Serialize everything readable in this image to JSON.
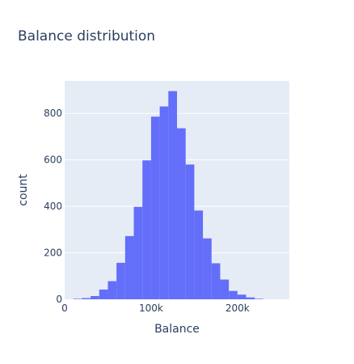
{
  "chart_data": {
    "type": "bar",
    "title": "Balance distribution",
    "xlabel": "Balance",
    "ylabel": "count",
    "xlim": [
      0,
      260000
    ],
    "ylim": [
      0,
      940
    ],
    "bin_width": 10000,
    "bins": [
      {
        "start": 10000,
        "count": 2
      },
      {
        "start": 20000,
        "count": 5
      },
      {
        "start": 30000,
        "count": 14
      },
      {
        "start": 40000,
        "count": 42
      },
      {
        "start": 50000,
        "count": 78
      },
      {
        "start": 60000,
        "count": 157
      },
      {
        "start": 70000,
        "count": 272
      },
      {
        "start": 80000,
        "count": 398
      },
      {
        "start": 90000,
        "count": 598
      },
      {
        "start": 100000,
        "count": 786
      },
      {
        "start": 110000,
        "count": 830
      },
      {
        "start": 120000,
        "count": 896
      },
      {
        "start": 130000,
        "count": 736
      },
      {
        "start": 140000,
        "count": 580
      },
      {
        "start": 150000,
        "count": 382
      },
      {
        "start": 160000,
        "count": 262
      },
      {
        "start": 170000,
        "count": 155
      },
      {
        "start": 180000,
        "count": 85
      },
      {
        "start": 190000,
        "count": 36
      },
      {
        "start": 200000,
        "count": 20
      },
      {
        "start": 210000,
        "count": 8
      },
      {
        "start": 220000,
        "count": 2
      }
    ],
    "x_ticks": [
      {
        "value": 0,
        "label": "0"
      },
      {
        "value": 100000,
        "label": "100k"
      },
      {
        "value": 200000,
        "label": "200k"
      }
    ],
    "y_ticks": [
      {
        "value": 0,
        "label": "0"
      },
      {
        "value": 200,
        "label": "200"
      },
      {
        "value": 400,
        "label": "400"
      },
      {
        "value": 600,
        "label": "600"
      },
      {
        "value": 800,
        "label": "800"
      }
    ],
    "grid": true,
    "colors": {
      "bar": "#636efa",
      "plot_background": "#e5ecf6",
      "gridline": "#ffffff",
      "text": "#2a3f5f"
    }
  }
}
